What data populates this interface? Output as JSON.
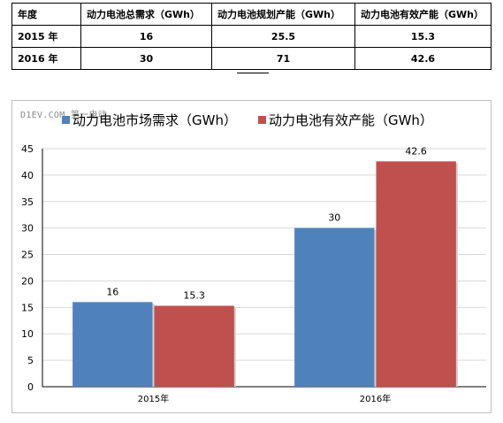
{
  "table": {
    "headers": [
      "年度",
      "动力电池总需求（GWh）",
      "动力电池规划产能（GWh）",
      "动力电池有效产能（GWh）"
    ],
    "rows": [
      [
        "2015 年",
        "16",
        "25.5",
        "15.3"
      ],
      [
        "2016 年",
        "30",
        "71",
        "42.6"
      ]
    ]
  },
  "watermark": "D1EV.COM 第一电动",
  "colors": {
    "demand": "#4f81bd",
    "capacity": "#c0504d",
    "grid": "#d9d9d9",
    "axis": "#000000"
  },
  "chart_data": {
    "type": "bar",
    "categories": [
      "2015年",
      "2016年"
    ],
    "series": [
      {
        "name": "动力电池市场需求（GWh）",
        "values": [
          16,
          30
        ]
      },
      {
        "name": "动力电池有效产能（GWh）",
        "values": [
          15.3,
          42.6
        ]
      }
    ],
    "data_labels": [
      [
        "16",
        "30"
      ],
      [
        "15.3",
        "42.6"
      ]
    ],
    "ylim": [
      0,
      45
    ],
    "yticks": [
      "0",
      "5",
      "10",
      "15",
      "20",
      "25",
      "30",
      "35",
      "40",
      "45"
    ],
    "grid": true,
    "legend_position": "top-left"
  }
}
